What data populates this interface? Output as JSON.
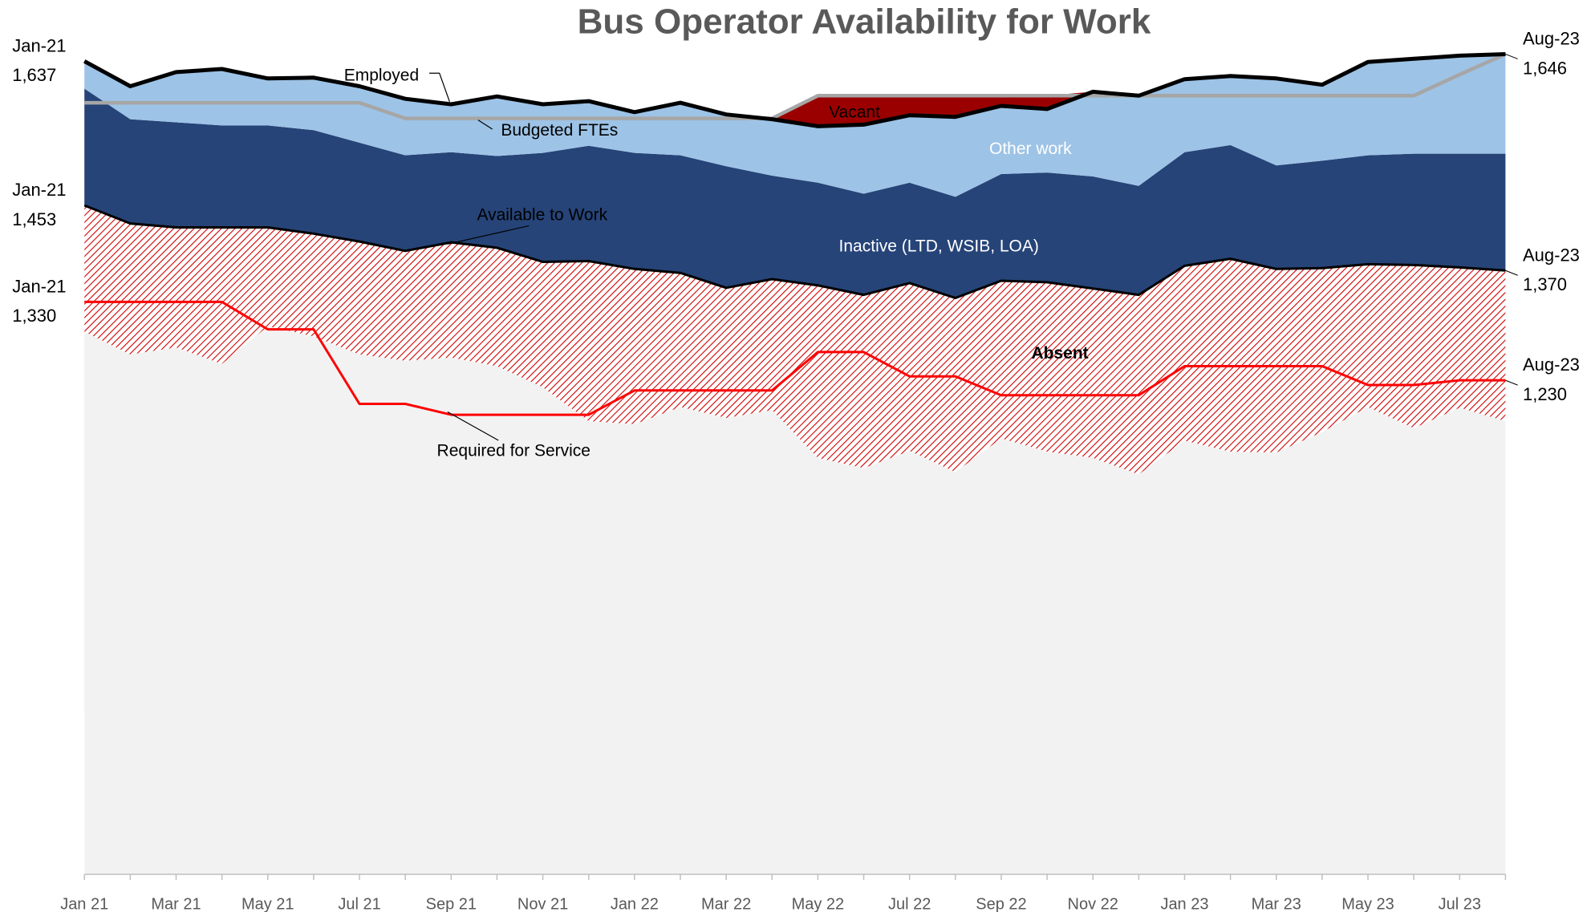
{
  "chart_data": {
    "type": "area",
    "title": "Bus Operator Availability for Work",
    "categories": [
      "Jan 21",
      null,
      "Mar 21",
      null,
      "May 21",
      null,
      "Jul 21",
      null,
      "Sep 21",
      null,
      "Nov 21",
      null,
      "Jan 22",
      null,
      "Mar 22",
      null,
      "May 22",
      null,
      "Jul 22",
      null,
      "Sep 22",
      null,
      "Nov 22",
      null,
      "Jan 23",
      null,
      "Mar 23",
      null,
      "May 23",
      null,
      "Jul 23",
      null
    ],
    "ylim": [
      600,
      1715
    ],
    "date_labels": [
      "Jan-21",
      "Aug-23"
    ],
    "series": [
      {
        "name": "Absent",
        "type": "area",
        "color": "#d00000",
        "values": [
          161,
          167,
          153,
          174,
          126,
          131,
          144,
          140,
          147,
          151,
          160,
          204,
          198,
          171,
          166,
          167,
          220,
          221,
          214,
          222,
          201,
          216,
          216,
          229,
          223,
          246,
          234,
          209,
          182,
          208,
          179,
          192
        ]
      },
      {
        "name": "Inactive (LTD, WSIB, LOA)",
        "type": "area",
        "color": "#264478",
        "values": [
          149,
          133,
          134,
          130,
          130,
          132,
          126,
          122,
          115,
          117,
          139,
          147,
          148,
          150,
          155,
          132,
          131,
          129,
          128,
          129,
          136,
          140,
          143,
          139,
          145,
          145,
          132,
          137,
          139,
          142,
          145,
          149
        ]
      },
      {
        "name": "Other work",
        "type": "area",
        "color": "#9dc3e6",
        "values": [
          35,
          42,
          64,
          72,
          60,
          67,
          72,
          72,
          61,
          76,
          62,
          57,
          52,
          67,
          66,
          72,
          72,
          88,
          86,
          102,
          87,
          81,
          108,
          115,
          93,
          88,
          111,
          97,
          119,
          121,
          125,
          127
        ]
      },
      {
        "name": "Vacant",
        "type": "area",
        "color": "#9b0000",
        "values": [
          0,
          0,
          0,
          0,
          0,
          0,
          0,
          0,
          0,
          0,
          0,
          0,
          0,
          0,
          0,
          1,
          39,
          37,
          25,
          27,
          13,
          17,
          0,
          0,
          0,
          0,
          0,
          0,
          0,
          0,
          0,
          0
        ]
      },
      {
        "name": "Employed",
        "type": "line",
        "color": "#000000",
        "values": [
          1637,
          1605,
          1623,
          1627,
          1615,
          1616,
          1605,
          1589,
          1582,
          1592,
          1582,
          1586,
          1572,
          1584,
          1569,
          1563,
          1554,
          1556,
          1568,
          1566,
          1580,
          1576,
          1598,
          1593,
          1614,
          1618,
          1615,
          1607,
          1636,
          1640,
          1644,
          1646
        ],
        "value_labels": [
          "1,637",
          null,
          null,
          null,
          null,
          null,
          null,
          null,
          null,
          null,
          null,
          null,
          null,
          null,
          null,
          null,
          null,
          null,
          null,
          null,
          null,
          null,
          null,
          null,
          null,
          null,
          null,
          null,
          null,
          null,
          null,
          "1,646"
        ]
      },
      {
        "name": "Budgeted FTEs",
        "type": "line",
        "color": "#a6a6a6",
        "values": [
          1584,
          1584,
          1584,
          1584,
          1584,
          1584,
          1584,
          1564,
          1564,
          1564,
          1564,
          1564,
          1564,
          1564,
          1564,
          1564,
          1593,
          1593,
          1593,
          1593,
          1593,
          1593,
          1593,
          1593,
          1593,
          1593,
          1593,
          1593,
          1593,
          1593,
          1620,
          1646
        ]
      },
      {
        "name": "Available to Work",
        "type": "line",
        "color": "#000000",
        "values": [
          1453,
          1430,
          1425,
          1425,
          1425,
          1417,
          1407,
          1395,
          1406,
          1399,
          1381,
          1382,
          1372,
          1367,
          1348,
          1359,
          1351,
          1339,
          1354,
          1335,
          1357,
          1355,
          1347,
          1339,
          1376,
          1385,
          1372,
          1373,
          1378,
          1377,
          1374,
          1370
        ],
        "value_labels": [
          "1,453",
          null,
          null,
          null,
          null,
          null,
          null,
          null,
          null,
          null,
          null,
          null,
          null,
          null,
          null,
          null,
          null,
          null,
          null,
          null,
          null,
          null,
          null,
          null,
          null,
          null,
          null,
          null,
          null,
          null,
          null,
          "1,370"
        ]
      },
      {
        "name": "Required for Service",
        "type": "line",
        "color": "#ff0000",
        "values": [
          1330,
          1330,
          1330,
          1330,
          1295,
          1295,
          1200,
          1200,
          1186,
          1186,
          1186,
          1186,
          1217,
          1217,
          1217,
          1217,
          1266,
          1266,
          1235,
          1235,
          1211,
          1211,
          1211,
          1211,
          1248,
          1248,
          1248,
          1248,
          1224,
          1224,
          1230,
          1230
        ],
        "value_labels": [
          "1,330",
          null,
          null,
          null,
          null,
          null,
          null,
          null,
          null,
          null,
          null,
          null,
          null,
          null,
          null,
          null,
          null,
          null,
          null,
          null,
          null,
          null,
          null,
          null,
          null,
          null,
          null,
          null,
          null,
          null,
          null,
          "1,230"
        ]
      }
    ]
  }
}
